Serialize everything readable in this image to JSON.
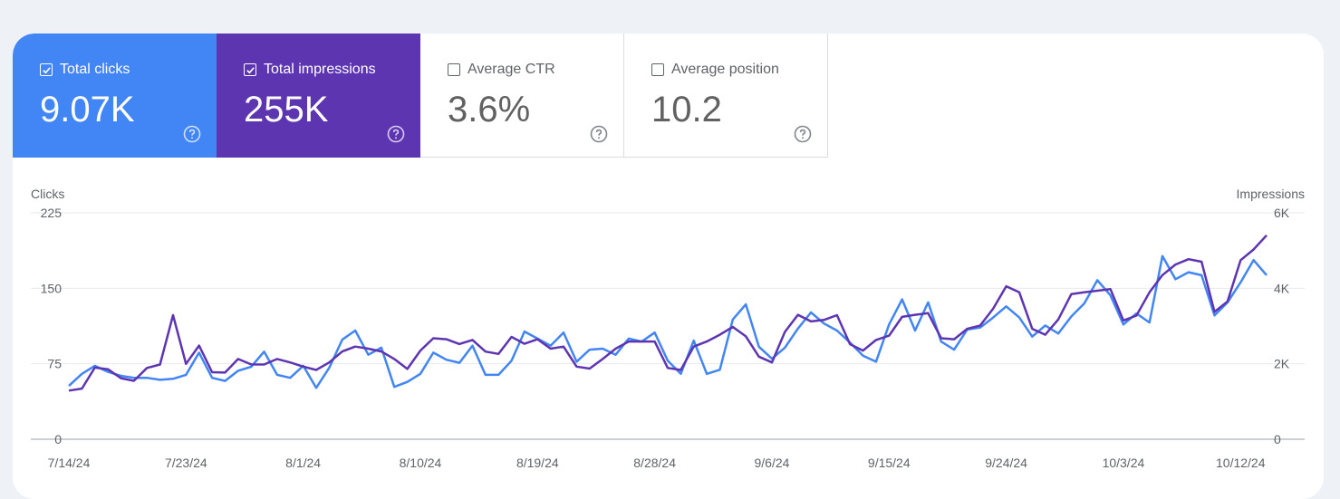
{
  "metrics": [
    {
      "label": "Total clicks",
      "value": "9.07K",
      "checked": true,
      "color": "#4285f4"
    },
    {
      "label": "Total impressions",
      "value": "255K",
      "checked": true,
      "color": "#5e35b1"
    },
    {
      "label": "Average CTR",
      "value": "3.6%",
      "checked": false,
      "color": "#ffffff"
    },
    {
      "label": "Average position",
      "value": "10.2",
      "checked": false,
      "color": "#ffffff"
    }
  ],
  "chart_data": {
    "type": "line",
    "left_axis_title": "Clicks",
    "right_axis_title": "Impressions",
    "left_ticks": [
      "225",
      "150",
      "75",
      "0"
    ],
    "right_ticks": [
      "6K",
      "4K",
      "2K",
      "0"
    ],
    "ylim_left": [
      0,
      225
    ],
    "ylim_right": [
      0,
      6000
    ],
    "x_tick_labels": [
      "7/14/24",
      "7/23/24",
      "8/1/24",
      "8/10/24",
      "8/19/24",
      "8/28/24",
      "9/6/24",
      "9/15/24",
      "9/24/24",
      "10/3/24",
      "10/12/24"
    ],
    "x_tick_every_days": 9,
    "grid": true,
    "series": [
      {
        "name": "Total clicks",
        "axis": "left",
        "color": "#4285f4",
        "values": [
          53,
          65,
          73,
          67,
          63,
          61,
          61,
          59,
          60,
          64,
          86,
          61,
          58,
          68,
          72,
          87,
          64,
          61,
          73,
          51,
          71,
          99,
          108,
          84,
          91,
          52,
          57,
          65,
          86,
          79,
          76,
          93,
          64,
          64,
          78,
          107,
          100,
          93,
          106,
          77,
          89,
          90,
          84,
          100,
          97,
          106,
          78,
          65,
          98,
          65,
          69,
          119,
          134,
          92,
          80,
          91,
          110,
          126,
          115,
          108,
          96,
          83,
          77,
          114,
          139,
          108,
          136,
          97,
          89,
          109,
          111,
          121,
          132,
          121,
          102,
          113,
          105,
          122,
          135,
          158,
          143,
          114,
          125,
          116,
          182,
          159,
          166,
          163,
          123,
          136,
          156,
          178,
          163
        ]
      },
      {
        "name": "Total impressions",
        "axis": "right",
        "color": "#5e35b1",
        "values": [
          1288,
          1341,
          1899,
          1855,
          1618,
          1549,
          1890,
          1979,
          3289,
          1996,
          2482,
          1775,
          1766,
          2126,
          1983,
          1979,
          2126,
          2036,
          1925,
          1837,
          2036,
          2326,
          2455,
          2401,
          2326,
          2126,
          1863,
          2349,
          2677,
          2650,
          2522,
          2630,
          2323,
          2261,
          2711,
          2530,
          2650,
          2401,
          2455,
          1925,
          1872,
          2126,
          2401,
          2590,
          2590,
          2590,
          1890,
          1837,
          2455,
          2590,
          2770,
          2977,
          2726,
          2190,
          2036,
          2845,
          3297,
          3122,
          3162,
          3288,
          2517,
          2350,
          2630,
          2745,
          3242,
          3297,
          3340,
          2677,
          2650,
          2926,
          3015,
          3463,
          4053,
          3894,
          2926,
          2770,
          3175,
          3847,
          3894,
          3936,
          3979,
          3146,
          3276,
          3894,
          4349,
          4630,
          4772,
          4703,
          3376,
          3652,
          4744,
          5029,
          5404
        ]
      }
    ]
  }
}
